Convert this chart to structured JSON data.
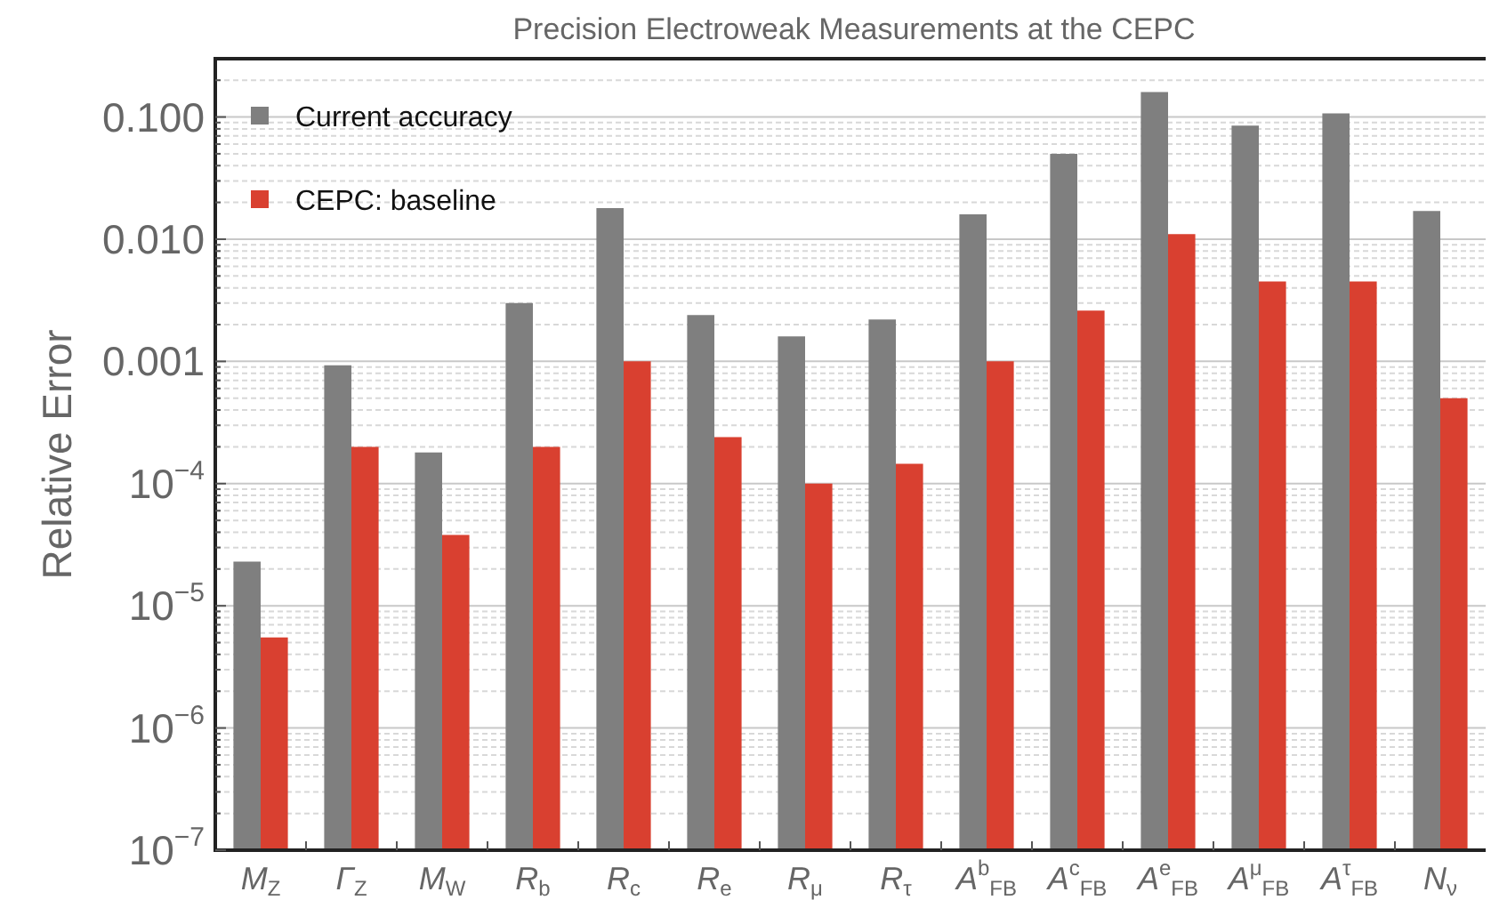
{
  "chart_data": {
    "type": "bar",
    "title": "Precision Electroweak Measurements at the CEPC",
    "ylabel": "Relative Error",
    "categories": [
      "M$_{Z}$",
      "Γ$_{Z}$",
      "M$_{W}$",
      "R$_{b}$",
      "R$_{c}$",
      "R$_{e}$",
      "R$_{μ}$",
      "R$_{τ}$",
      "A$^{b}$$_{FB}$",
      "A$^{c}$$_{FB}$",
      "A$^{e}$$_{FB}$",
      "A$^{μ}$$_{FB}$",
      "A$^{τ}$$_{FB}$",
      "N$_{ν}$"
    ],
    "series": [
      {
        "name": "Current accuracy",
        "color": "#7f7f7f",
        "values": [
          2.3e-05,
          0.00093,
          0.00018,
          0.003,
          0.018,
          0.0024,
          0.0016,
          0.0022,
          0.016,
          0.05,
          0.16,
          0.085,
          0.107,
          0.017
        ]
      },
      {
        "name": "CEPC: baseline",
        "color": "#d94030",
        "values": [
          5.5e-06,
          0.0002,
          3.8e-05,
          0.0002,
          0.001,
          0.00024,
          0.0001,
          0.000145,
          0.001,
          0.0026,
          0.011,
          0.0045,
          0.0045,
          0.0005
        ]
      }
    ],
    "log": "y",
    "ylim": [
      1e-07,
      0.3
    ],
    "yticks": [
      {
        "value": 1e-07,
        "label": "10$^{−7}$"
      },
      {
        "value": 2e-07,
        "label": null
      },
      {
        "value": 3e-07,
        "label": null
      },
      {
        "value": 4e-07,
        "label": null
      },
      {
        "value": 5e-07,
        "label": null
      },
      {
        "value": 6e-07,
        "label": null
      },
      {
        "value": 7e-07,
        "label": null
      },
      {
        "value": 8e-07,
        "label": null
      },
      {
        "value": 9e-07,
        "label": null
      },
      {
        "value": 1e-06,
        "label": "10$^{−6}$"
      },
      {
        "value": 2e-06,
        "label": null
      },
      {
        "value": 3e-06,
        "label": null
      },
      {
        "value": 4e-06,
        "label": null
      },
      {
        "value": 5e-06,
        "label": null
      },
      {
        "value": 6e-06,
        "label": null
      },
      {
        "value": 7e-06,
        "label": null
      },
      {
        "value": 8e-06,
        "label": null
      },
      {
        "value": 9e-06,
        "label": null
      },
      {
        "value": 1e-05,
        "label": "10$^{−5}$"
      },
      {
        "value": 2e-05,
        "label": null
      },
      {
        "value": 3e-05,
        "label": null
      },
      {
        "value": 4e-05,
        "label": null
      },
      {
        "value": 5e-05,
        "label": null
      },
      {
        "value": 6e-05,
        "label": null
      },
      {
        "value": 7e-05,
        "label": null
      },
      {
        "value": 8e-05,
        "label": null
      },
      {
        "value": 9e-05,
        "label": null
      },
      {
        "value": 0.0001,
        "label": "10$^{−4}$"
      },
      {
        "value": 0.0002,
        "label": null
      },
      {
        "value": 0.0003,
        "label": null
      },
      {
        "value": 0.0004,
        "label": null
      },
      {
        "value": 0.0005,
        "label": null
      },
      {
        "value": 0.0006,
        "label": null
      },
      {
        "value": 0.0007,
        "label": null
      },
      {
        "value": 0.0008,
        "label": null
      },
      {
        "value": 0.0009,
        "label": null
      },
      {
        "value": 0.001,
        "label": "0.001"
      },
      {
        "value": 0.002,
        "label": null
      },
      {
        "value": 0.003,
        "label": null
      },
      {
        "value": 0.004,
        "label": null
      },
      {
        "value": 0.005,
        "label": null
      },
      {
        "value": 0.006,
        "label": null
      },
      {
        "value": 0.007,
        "label": null
      },
      {
        "value": 0.008,
        "label": null
      },
      {
        "value": 0.009,
        "label": null
      },
      {
        "value": 0.01,
        "label": "0.010"
      },
      {
        "value": 0.02,
        "label": null
      },
      {
        "value": 0.03,
        "label": null
      },
      {
        "value": 0.04,
        "label": null
      },
      {
        "value": 0.05,
        "label": null
      },
      {
        "value": 0.06,
        "label": null
      },
      {
        "value": 0.07,
        "label": null
      },
      {
        "value": 0.08,
        "label": null
      },
      {
        "value": 0.09,
        "label": null
      },
      {
        "value": 0.1,
        "label": "0.100"
      },
      {
        "value": 0.2,
        "label": null
      }
    ],
    "grid": "y",
    "legend": "top left"
  }
}
